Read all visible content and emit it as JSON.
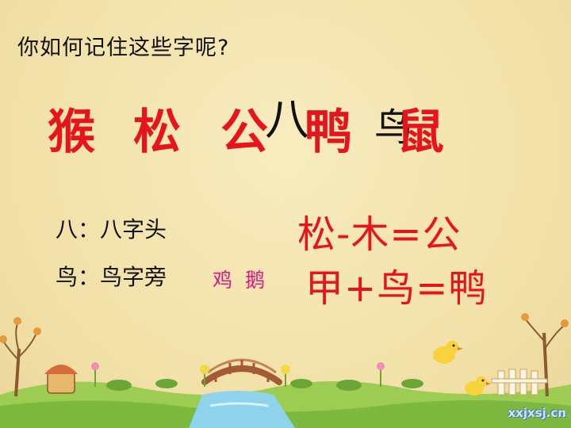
{
  "title": "你如何记住这些字呢?",
  "characters": {
    "c1": "猴",
    "c2": "松",
    "c3": "公",
    "c3_part": "八",
    "c4": "鸭",
    "c5_part": "鸟",
    "c6": "鼠"
  },
  "notes": {
    "line1": "八：八字头",
    "line2": "鸟：鸟字旁"
  },
  "examples": "鸡 鹅",
  "equations": {
    "eq1": "松-木=公",
    "eq2": "甲+鸟=鸭"
  },
  "watermark": "xxjxsj.cn",
  "colors": {
    "accent_red": "#e8141b",
    "pink": "#e2177e",
    "background": "#f4e6b2",
    "grass": "#9ccc52"
  }
}
